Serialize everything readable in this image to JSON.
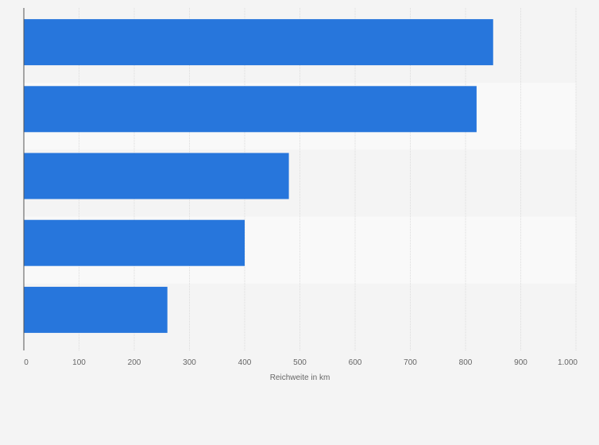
{
  "chart_data": {
    "type": "bar",
    "orientation": "horizontal",
    "categories": [
      "",
      "",
      "",
      "",
      ""
    ],
    "values": [
      850,
      820,
      480,
      400,
      260
    ],
    "xlim": [
      0,
      1000
    ],
    "xticks": [
      0,
      100,
      200,
      300,
      400,
      500,
      600,
      700,
      800,
      900,
      1000
    ],
    "xtick_labels": [
      "0",
      "100",
      "200",
      "300",
      "400",
      "500",
      "600",
      "700",
      "800",
      "900",
      "1.000"
    ],
    "xlabel": "Reichweite in km",
    "ylabel": "",
    "title": "",
    "grid": true,
    "legend": "none",
    "colors": {
      "bar": "#2776dc",
      "band_dark": "#f4f4f4",
      "band_light": "#f9f9f9",
      "grid": "#dcdcdc",
      "axis": "#555555"
    }
  }
}
